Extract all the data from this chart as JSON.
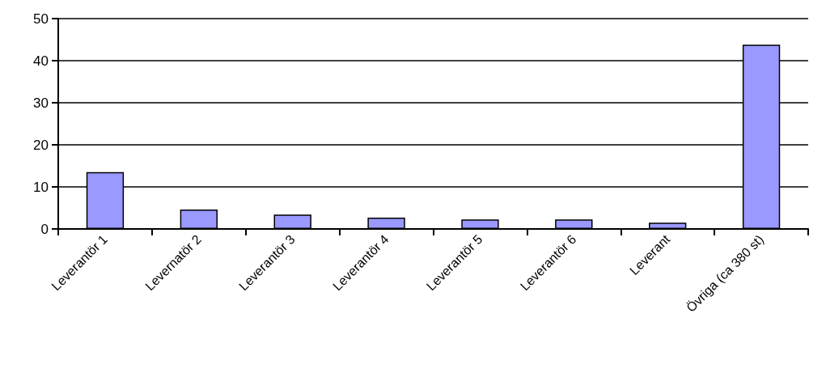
{
  "chart_data": {
    "type": "bar",
    "categories": [
      "Leverantör 1",
      "Levernatör 2",
      "Leverantör 3",
      "Leverantör 4",
      "Leverantör 5",
      "Leverantör 6",
      "Leverant",
      "Övriga (ca 380 st)"
    ],
    "values": [
      13.5,
      4.6,
      3.4,
      2.7,
      2.25,
      2.25,
      1.5,
      43.8
    ],
    "color": "#9999ff",
    "ylim": [
      0,
      50
    ],
    "yticks": [
      0,
      10,
      20,
      30,
      40,
      50
    ],
    "grid": "y"
  }
}
